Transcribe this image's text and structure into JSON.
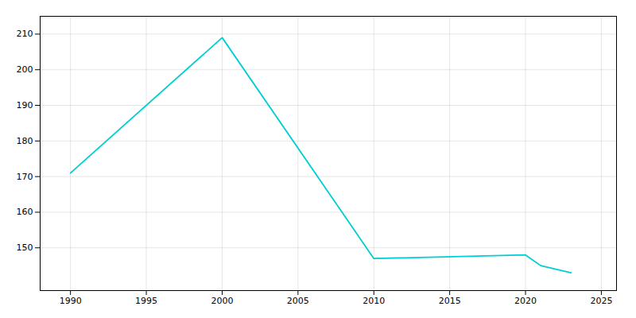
{
  "chart_data": {
    "type": "line",
    "x": [
      1990,
      2000,
      2010,
      2020,
      2021,
      2022,
      2023
    ],
    "values": [
      171,
      209,
      147,
      148,
      145,
      144,
      143
    ],
    "color": "#00CED1",
    "xlim": [
      1988,
      2026
    ],
    "ylim": [
      138,
      215
    ],
    "xticks": [
      1990,
      1995,
      2000,
      2005,
      2010,
      2015,
      2020,
      2025
    ],
    "yticks": [
      150,
      160,
      170,
      180,
      190,
      200,
      210
    ],
    "grid": true
  }
}
